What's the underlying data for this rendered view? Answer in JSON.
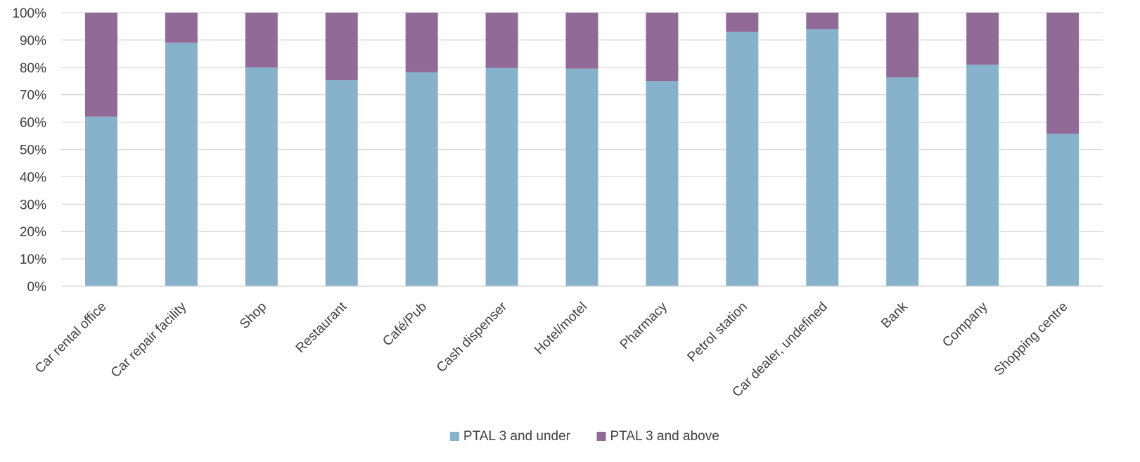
{
  "chart_data": {
    "type": "bar",
    "stacked": true,
    "title": "",
    "xlabel": "",
    "ylabel": "",
    "ylim": [
      0,
      100
    ],
    "y_ticks": [
      "0%",
      "10%",
      "20%",
      "30%",
      "40%",
      "50%",
      "60%",
      "70%",
      "80%",
      "90%",
      "100%"
    ],
    "grid": true,
    "legend_position": "bottom",
    "categories": [
      "Car rental office",
      "Car repair facility",
      "Shop",
      "Restaurant",
      "Café/Pub",
      "Cash dispenser",
      "Hotel/motel",
      "Pharmacy",
      "Petrol station",
      "Car dealer, undefined",
      "Bank",
      "Company",
      "Shopping centre"
    ],
    "series": [
      {
        "name": "PTAL 3 and under",
        "color": "#86B2CB",
        "values": [
          62,
          89,
          80,
          75.3,
          78.2,
          79.8,
          79.5,
          75,
          93,
          94,
          76.3,
          81,
          55.7
        ]
      },
      {
        "name": "PTAL 3 and above",
        "color": "#926A98",
        "values": [
          38,
          11,
          20,
          24.7,
          21.8,
          20.2,
          20.5,
          25,
          7,
          6,
          23.7,
          19,
          44.3
        ]
      }
    ]
  }
}
